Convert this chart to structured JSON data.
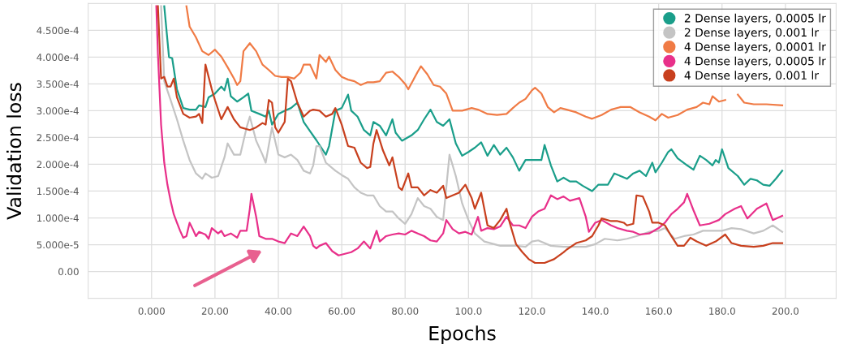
{
  "chart_data": {
    "type": "line",
    "xlabel": "Epochs",
    "ylabel": "Validation loss",
    "xlim": [
      -20,
      216
    ],
    "ylim": [
      -5e-05,
      0.0005
    ],
    "xticks": [
      {
        "value": 0,
        "label": "0.000"
      },
      {
        "value": 20,
        "label": "20.00"
      },
      {
        "value": 40,
        "label": "40.00"
      },
      {
        "value": 60,
        "label": "60.00"
      },
      {
        "value": 80,
        "label": "80.00"
      },
      {
        "value": 100,
        "label": "100.0"
      },
      {
        "value": 120,
        "label": "120.0"
      },
      {
        "value": 140,
        "label": "140.0"
      },
      {
        "value": 160,
        "label": "160.0"
      },
      {
        "value": 180,
        "label": "180.0"
      },
      {
        "value": 200,
        "label": "200.0"
      }
    ],
    "yticks": [
      {
        "value": 0,
        "label": "0.00"
      },
      {
        "value": 5e-05,
        "label": "5.000e-5"
      },
      {
        "value": 0.0001,
        "label": "1.000e-4"
      },
      {
        "value": 0.00015,
        "label": "1.500e-4"
      },
      {
        "value": 0.0002,
        "label": "2.000e-4"
      },
      {
        "value": 0.00025,
        "label": "2.500e-4"
      },
      {
        "value": 0.0003,
        "label": "3.000e-4"
      },
      {
        "value": 0.00035,
        "label": "3.500e-4"
      },
      {
        "value": 0.0004,
        "label": "4.000e-4"
      },
      {
        "value": 0.00045,
        "label": "4.500e-4"
      }
    ],
    "grid": true,
    "legend": "top right",
    "line_style": "solid",
    "series": [
      {
        "name": "2 Dense layers, 0.0005 lr",
        "color": "#1a9e8a",
        "x": [
          4,
          5.5,
          6.5,
          8,
          10,
          12,
          14,
          15,
          17,
          18,
          20,
          22,
          23,
          24,
          25,
          27,
          29,
          30.5,
          31.5,
          34,
          36,
          37,
          38,
          40,
          42,
          44,
          46,
          48,
          50,
          52,
          55,
          56,
          58,
          60,
          62,
          63,
          65,
          67,
          69,
          70,
          72,
          74,
          76,
          77,
          79,
          82,
          84,
          86,
          88,
          90,
          92,
          94,
          96,
          98,
          100,
          102,
          104,
          106,
          108,
          110,
          112,
          114,
          116,
          118,
          121,
          123,
          124,
          126,
          128,
          130,
          132,
          134,
          136,
          139,
          141,
          144,
          146,
          148,
          150,
          152,
          154,
          156,
          158,
          159,
          161,
          163,
          164,
          166,
          169,
          171,
          173,
          175,
          177,
          178,
          179,
          180,
          182,
          185,
          187,
          189,
          191,
          193,
          195,
          197,
          199
        ],
        "values": [
          0.000495,
          0.0004,
          0.000398,
          0.00034,
          0.000305,
          0.000302,
          0.000302,
          0.00031,
          0.000307,
          0.000325,
          0.000332,
          0.000345,
          0.000338,
          0.00036,
          0.000327,
          0.000317,
          0.000325,
          0.000332,
          0.0003,
          0.000294,
          0.000289,
          0.0003,
          0.000274,
          0.000294,
          0.0003,
          0.000305,
          0.000315,
          0.000279,
          0.000262,
          0.000245,
          0.000218,
          0.000234,
          0.0003,
          0.000305,
          0.00033,
          0.0003,
          0.000289,
          0.000264,
          0.000254,
          0.000279,
          0.000272,
          0.000254,
          0.000284,
          0.000259,
          0.000244,
          0.000254,
          0.000264,
          0.000284,
          0.000302,
          0.000279,
          0.000272,
          0.000284,
          0.000239,
          0.000216,
          0.000223,
          0.000231,
          0.000241,
          0.000216,
          0.000236,
          0.000218,
          0.000231,
          0.000213,
          0.000188,
          0.000208,
          0.000208,
          0.000208,
          0.000236,
          0.000198,
          0.000168,
          0.000175,
          0.000168,
          0.000168,
          0.00016,
          0.00015,
          0.000162,
          0.000162,
          0.000183,
          0.000178,
          0.000173,
          0.000183,
          0.000188,
          0.000178,
          0.000203,
          0.000185,
          0.000203,
          0.000223,
          0.000228,
          0.000211,
          0.000198,
          0.00019,
          0.000216,
          0.000208,
          0.000198,
          0.000208,
          0.000203,
          0.000228,
          0.000193,
          0.000178,
          0.000162,
          0.000173,
          0.00017,
          0.000162,
          0.00016,
          0.000173,
          0.000188
        ]
      },
      {
        "name": "2 Dense layers, 0.001 lr",
        "color": "#c4c4c4",
        "x": [
          3,
          4,
          6,
          8,
          10,
          12,
          14,
          16,
          17,
          19,
          21,
          23,
          24,
          26,
          28,
          30,
          31,
          33,
          35,
          36,
          38,
          40,
          42,
          44,
          46,
          48,
          50,
          51,
          52,
          53,
          55,
          58,
          60,
          62,
          64,
          66,
          68,
          70,
          72,
          74,
          76,
          78,
          80,
          82,
          84,
          86,
          88,
          90,
          92,
          94,
          96,
          98,
          100,
          102,
          105,
          110,
          115,
          118,
          120,
          122,
          126,
          130,
          132,
          137,
          140,
          143,
          147,
          150,
          153,
          157,
          160,
          162,
          165,
          168,
          171,
          174,
          177,
          180,
          183,
          186,
          190,
          193,
          196,
          199
        ],
        "values": [
          0.000495,
          0.000355,
          0.00032,
          0.000284,
          0.000244,
          0.000208,
          0.000183,
          0.000173,
          0.000183,
          0.000175,
          0.000178,
          0.000213,
          0.000239,
          0.000218,
          0.000218,
          0.000269,
          0.000289,
          0.000244,
          0.000218,
          0.000203,
          0.000269,
          0.000218,
          0.000213,
          0.000218,
          0.000208,
          0.000188,
          0.000183,
          0.000198,
          0.000234,
          0.000234,
          0.000203,
          0.000188,
          0.00018,
          0.000173,
          0.000157,
          0.000147,
          0.000142,
          0.000142,
          0.000122,
          0.000112,
          0.000112,
          9.9e-05,
          8.9e-05,
          0.000107,
          0.000137,
          0.000122,
          0.000117,
          0.000102,
          9.6e-05,
          0.000218,
          0.000178,
          0.000127,
          9.6e-05,
          7.1e-05,
          5.6e-05,
          4.8e-05,
          4.8e-05,
          4.6e-05,
          5.6e-05,
          5.8e-05,
          4.8e-05,
          4.6e-05,
          4.6e-05,
          4.6e-05,
          5.1e-05,
          6.1e-05,
          5.8e-05,
          6.1e-05,
          6.6e-05,
          7.4e-05,
          7.6e-05,
          8.1e-05,
          6.1e-05,
          6.6e-05,
          6.9e-05,
          7.6e-05,
          7.6e-05,
          7.6e-05,
          8.1e-05,
          7.9e-05,
          7.1e-05,
          7.6e-05,
          8.6e-05,
          7.4e-05
        ]
      },
      {
        "name": "4 Dense layers, 0.0001 lr",
        "color": "#f07b45",
        "x": [
          11,
          12,
          14,
          16,
          18,
          20,
          22,
          24,
          26,
          27,
          28,
          29,
          31,
          33,
          35,
          37,
          39,
          41,
          43,
          45,
          47,
          48,
          50,
          52,
          53,
          55,
          56,
          58,
          60,
          62,
          64,
          66,
          68,
          70,
          72,
          74,
          76,
          78,
          80,
          81,
          84,
          85,
          87,
          89,
          91,
          93,
          95,
          98,
          101,
          103,
          106,
          109,
          112,
          114,
          116,
          118,
          120,
          121,
          123,
          125,
          127,
          129,
          131,
          134,
          137,
          139,
          142,
          145,
          148,
          151,
          154,
          157,
          159,
          161,
          163,
          166,
          169,
          172,
          174,
          176,
          177,
          179,
          181,
          183,
          185,
          187,
          190,
          194,
          199
        ],
        "values": [
          0.000495,
          0.000457,
          0.000437,
          0.000411,
          0.000404,
          0.000414,
          0.000401,
          0.000381,
          0.00036,
          0.000348,
          0.000355,
          0.000411,
          0.000426,
          0.000411,
          0.000386,
          0.000376,
          0.000365,
          0.000363,
          0.000363,
          0.00036,
          0.000371,
          0.000386,
          0.000386,
          0.00036,
          0.000404,
          0.000391,
          0.000401,
          0.000376,
          0.000363,
          0.000358,
          0.000355,
          0.000348,
          0.000353,
          0.000353,
          0.000355,
          0.000371,
          0.000373,
          0.000363,
          0.00035,
          0.00034,
          0.000373,
          0.000383,
          0.000368,
          0.000348,
          0.000345,
          0.000332,
          0.0003,
          0.0003,
          0.000305,
          0.000302,
          0.000294,
          0.000292,
          0.000294,
          0.000305,
          0.000315,
          0.000322,
          0.000338,
          0.000343,
          0.000332,
          0.000307,
          0.000297,
          0.000305,
          0.000302,
          0.000297,
          0.000289,
          0.000285,
          0.000292,
          0.000302,
          0.000307,
          0.000307,
          0.000297,
          0.000289,
          0.000282,
          0.000294,
          0.000287,
          0.000292,
          0.000302,
          0.000307,
          0.000315,
          0.000312,
          0.000327,
          0.000317,
          0.00032,
          null,
          0.00033,
          0.000315,
          0.000312,
          0.000312,
          0.00031
        ]
      },
      {
        "name": "4 Dense layers, 0.0005 lr",
        "color": "#e8308a",
        "x": [
          1.5,
          2,
          3,
          4,
          5,
          6,
          7,
          8,
          9,
          10,
          11,
          12,
          13,
          14,
          15,
          17,
          18,
          19,
          21,
          22,
          23,
          25,
          27,
          28,
          30,
          31,
          31.5,
          33,
          34,
          36,
          38,
          40,
          42,
          44,
          46,
          48,
          50,
          51,
          52,
          53,
          55,
          57,
          59,
          61,
          63,
          65,
          67,
          69,
          71,
          72,
          74,
          76,
          78,
          80,
          82,
          84,
          86,
          88,
          90,
          92,
          93,
          95,
          97,
          99,
          101,
          103,
          104,
          106,
          108,
          110,
          112,
          114,
          116,
          118,
          120,
          122,
          124,
          126,
          128,
          130,
          132,
          135,
          137,
          138,
          140,
          142,
          145,
          147,
          150,
          152,
          154,
          157,
          160,
          162,
          164,
          166,
          168,
          169,
          171,
          173,
          176,
          179,
          181,
          184,
          186,
          188,
          191,
          194,
          196,
          199
        ],
        "values": [
          0.000495,
          0.000406,
          0.000274,
          0.000203,
          0.000162,
          0.000132,
          0.000107,
          9.1e-05,
          7.6e-05,
          6.3e-05,
          6.6e-05,
          9.1e-05,
          7.9e-05,
          6.6e-05,
          7.4e-05,
          6.9e-05,
          6.1e-05,
          8.1e-05,
          7.1e-05,
          7.6e-05,
          6.6e-05,
          7.1e-05,
          6.3e-05,
          7.6e-05,
          7.6e-05,
          0.000117,
          0.000145,
          0.000102,
          6.6e-05,
          6.1e-05,
          6.1e-05,
          5.6e-05,
          5.3e-05,
          7.1e-05,
          6.6e-05,
          8.4e-05,
          6.6e-05,
          4.8e-05,
          4.3e-05,
          4.8e-05,
          5.3e-05,
          3.8e-05,
          3e-05,
          3.3e-05,
          3.6e-05,
          4.3e-05,
          5.6e-05,
          4.3e-05,
          7.6e-05,
          5.6e-05,
          6.6e-05,
          6.9e-05,
          7.1e-05,
          6.9e-05,
          7.6e-05,
          7.1e-05,
          6.6e-05,
          5.8e-05,
          5.6e-05,
          7.1e-05,
          9.6e-05,
          7.9e-05,
          7.1e-05,
          7.4e-05,
          6.9e-05,
          0.000102,
          7.6e-05,
          8.1e-05,
          7.9e-05,
          8.4e-05,
          0.000102,
          8.6e-05,
          8.6e-05,
          8.1e-05,
          0.000102,
          0.000112,
          0.000117,
          0.000142,
          0.000135,
          0.00014,
          0.000132,
          0.000137,
          0.000102,
          7.4e-05,
          9.1e-05,
          9.6e-05,
          8.6e-05,
          8.1e-05,
          7.6e-05,
          7.4e-05,
          6.9e-05,
          7.1e-05,
          8.1e-05,
          9.1e-05,
          0.000107,
          0.000117,
          0.000129,
          0.000145,
          0.000114,
          8.6e-05,
          8.9e-05,
          9.6e-05,
          0.000107,
          0.000117,
          0.000122,
          9.9e-05,
          0.000117,
          0.000127,
          9.6e-05,
          0.000104
        ]
      },
      {
        "name": "4 Dense layers, 0.001 lr",
        "color": "#c8401e",
        "x": [
          2,
          3,
          4,
          5,
          6,
          7,
          8,
          10,
          12,
          14,
          15,
          16,
          17,
          19,
          20,
          22,
          24,
          26,
          28,
          31,
          33,
          35,
          36,
          37,
          38,
          39,
          40,
          42,
          43,
          44,
          46,
          48,
          50,
          51,
          53,
          55,
          57,
          58,
          60,
          62,
          64,
          66,
          68,
          69,
          70,
          71,
          73,
          75,
          76,
          78,
          79,
          81,
          82,
          84,
          86,
          88,
          90,
          92,
          93,
          95,
          97,
          99,
          101,
          102,
          104,
          106,
          108,
          110,
          112,
          113,
          115,
          117,
          119,
          121,
          124,
          127,
          130,
          131,
          134,
          137,
          139,
          141,
          142,
          145,
          147,
          149,
          150,
          152,
          153,
          155,
          157,
          158,
          160,
          162,
          164,
          166,
          168,
          170,
          172,
          175,
          178,
          181,
          183,
          186,
          190,
          193,
          196,
          199
        ],
        "values": [
          0.000495,
          0.00036,
          0.000363,
          0.000345,
          0.000345,
          0.00036,
          0.000325,
          0.000294,
          0.000287,
          0.000289,
          0.000294,
          0.000277,
          0.000386,
          0.00034,
          0.00032,
          0.000284,
          0.000307,
          0.000284,
          0.000269,
          0.000264,
          0.000269,
          0.000277,
          0.000274,
          0.00032,
          0.000315,
          0.000269,
          0.000259,
          0.000279,
          0.00036,
          0.000355,
          0.000315,
          0.000289,
          0.0003,
          0.000302,
          0.0003,
          0.000289,
          0.000294,
          0.000305,
          0.000274,
          0.000234,
          0.000231,
          0.000203,
          0.000193,
          0.000195,
          0.000239,
          0.000264,
          0.000226,
          0.000198,
          0.000213,
          0.000157,
          0.000152,
          0.000183,
          0.000157,
          0.000157,
          0.000142,
          0.000152,
          0.000147,
          0.00016,
          0.000137,
          0.000142,
          0.000147,
          0.000162,
          0.000137,
          0.000117,
          0.000147,
          8.6e-05,
          8.1e-05,
          9.6e-05,
          0.000117,
          9.1e-05,
          5.1e-05,
          3.6e-05,
          2.3e-05,
          1.6e-05,
          1.6e-05,
          2.3e-05,
          3.6e-05,
          4.1e-05,
          5.3e-05,
          5.8e-05,
          6.6e-05,
          8.6e-05,
          9.9e-05,
          9.4e-05,
          9.4e-05,
          9.1e-05,
          8.6e-05,
          8.9e-05,
          0.000142,
          0.00014,
          0.000112,
          9.1e-05,
          9.1e-05,
          8.6e-05,
          6.6e-05,
          4.8e-05,
          4.8e-05,
          6.3e-05,
          5.6e-05,
          4.8e-05,
          5.6e-05,
          6.9e-05,
          5.3e-05,
          4.8e-05,
          4.6e-05,
          4.8e-05,
          5.3e-05,
          5.3e-05
        ]
      }
    ]
  }
}
